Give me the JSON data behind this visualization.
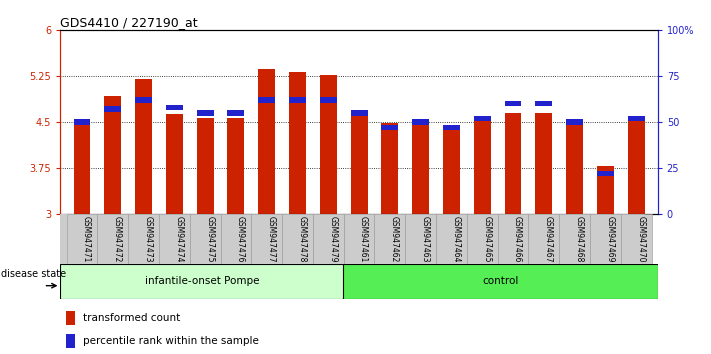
{
  "title": "GDS4410 / 227190_at",
  "samples": [
    "GSM947471",
    "GSM947472",
    "GSM947473",
    "GSM947474",
    "GSM947475",
    "GSM947476",
    "GSM947477",
    "GSM947478",
    "GSM947479",
    "GSM947461",
    "GSM947462",
    "GSM947463",
    "GSM947464",
    "GSM947465",
    "GSM947466",
    "GSM947467",
    "GSM947468",
    "GSM947469",
    "GSM947470"
  ],
  "transformed_count": [
    4.52,
    4.92,
    5.2,
    4.63,
    4.57,
    4.57,
    5.37,
    5.31,
    5.26,
    4.6,
    4.48,
    4.52,
    4.45,
    4.52,
    4.65,
    4.65,
    4.52,
    3.78,
    4.55
  ],
  "percentile": [
    50,
    57,
    62,
    58,
    55,
    55,
    62,
    62,
    62,
    55,
    47,
    50,
    47,
    52,
    60,
    60,
    50,
    22,
    52
  ],
  "group1_count": 9,
  "group2_count": 10,
  "group1_label": "infantile-onset Pompe",
  "group2_label": "control",
  "disease_state_label": "disease state",
  "ylim_left": [
    3,
    6
  ],
  "ylim_right": [
    0,
    100
  ],
  "yticks_left": [
    3,
    3.75,
    4.5,
    5.25,
    6
  ],
  "yticks_right": [
    0,
    25,
    50,
    75,
    100
  ],
  "ytick_labels_left": [
    "3",
    "3.75",
    "4.5",
    "5.25",
    "6"
  ],
  "ytick_labels_right": [
    "0",
    "25",
    "50",
    "75",
    "100%"
  ],
  "bar_color": "#CC2200",
  "percentile_color": "#2222CC",
  "group1_bg": "#CCFFCC",
  "group2_bg": "#55EE55",
  "xticklabel_bg": "#CCCCCC",
  "bar_width": 0.55,
  "legend_items": [
    "transformed count",
    "percentile rank within the sample"
  ],
  "font_size_title": 9,
  "font_size_ticks": 7,
  "font_size_legend": 7.5,
  "font_size_xtick": 5.5,
  "font_size_group": 7.5,
  "font_size_disease": 7
}
